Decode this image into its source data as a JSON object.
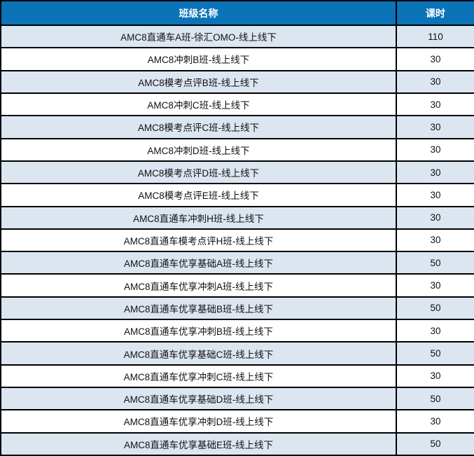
{
  "colors": {
    "header_bg": "#0B73B8",
    "header_text": "#FFFFFF",
    "stripe_bg": "#DCE6F1",
    "row_bg": "#FFFFFF",
    "border": "#000000"
  },
  "table": {
    "columns": [
      {
        "label": "班级名称"
      },
      {
        "label": "课时"
      }
    ],
    "rows": [
      {
        "name": "AMC8直通车A班-徐汇OMO-线上线下",
        "hours": "110"
      },
      {
        "name": "AMC8冲刺B班-线上线下",
        "hours": "30"
      },
      {
        "name": "AMC8模考点评B班-线上线下",
        "hours": "30"
      },
      {
        "name": "AMC8冲刺C班-线上线下",
        "hours": "30"
      },
      {
        "name": "AMC8模考点评C班-线上线下",
        "hours": "30"
      },
      {
        "name": "AMC8冲刺D班-线上线下",
        "hours": "30"
      },
      {
        "name": "AMC8模考点评D班-线上线下",
        "hours": "30"
      },
      {
        "name": "AMC8模考点评E班-线上线下",
        "hours": "30"
      },
      {
        "name": "AMC8直通车冲刺H班-线上线下",
        "hours": "30"
      },
      {
        "name": "AMC8直通车模考点评H班-线上线下",
        "hours": "30"
      },
      {
        "name": "AMC8直通车优享基础A班-线上线下",
        "hours": "50"
      },
      {
        "name": "AMC8直通车优享冲刺A班-线上线下",
        "hours": "30"
      },
      {
        "name": "AMC8直通车优享基础B班-线上线下",
        "hours": "50"
      },
      {
        "name": "AMC8直通车优享冲刺B班-线上线下",
        "hours": "30"
      },
      {
        "name": "AMC8直通车优享基础C班-线上线下",
        "hours": "50"
      },
      {
        "name": "AMC8直通车优享冲刺C班-线上线下",
        "hours": "30"
      },
      {
        "name": "AMC8直通车优享基础D班-线上线下",
        "hours": "50"
      },
      {
        "name": "AMC8直通车优享冲刺D班-线上线下",
        "hours": "30"
      },
      {
        "name": "AMC8直通车优享基础E班-线上线下",
        "hours": "50"
      }
    ]
  }
}
